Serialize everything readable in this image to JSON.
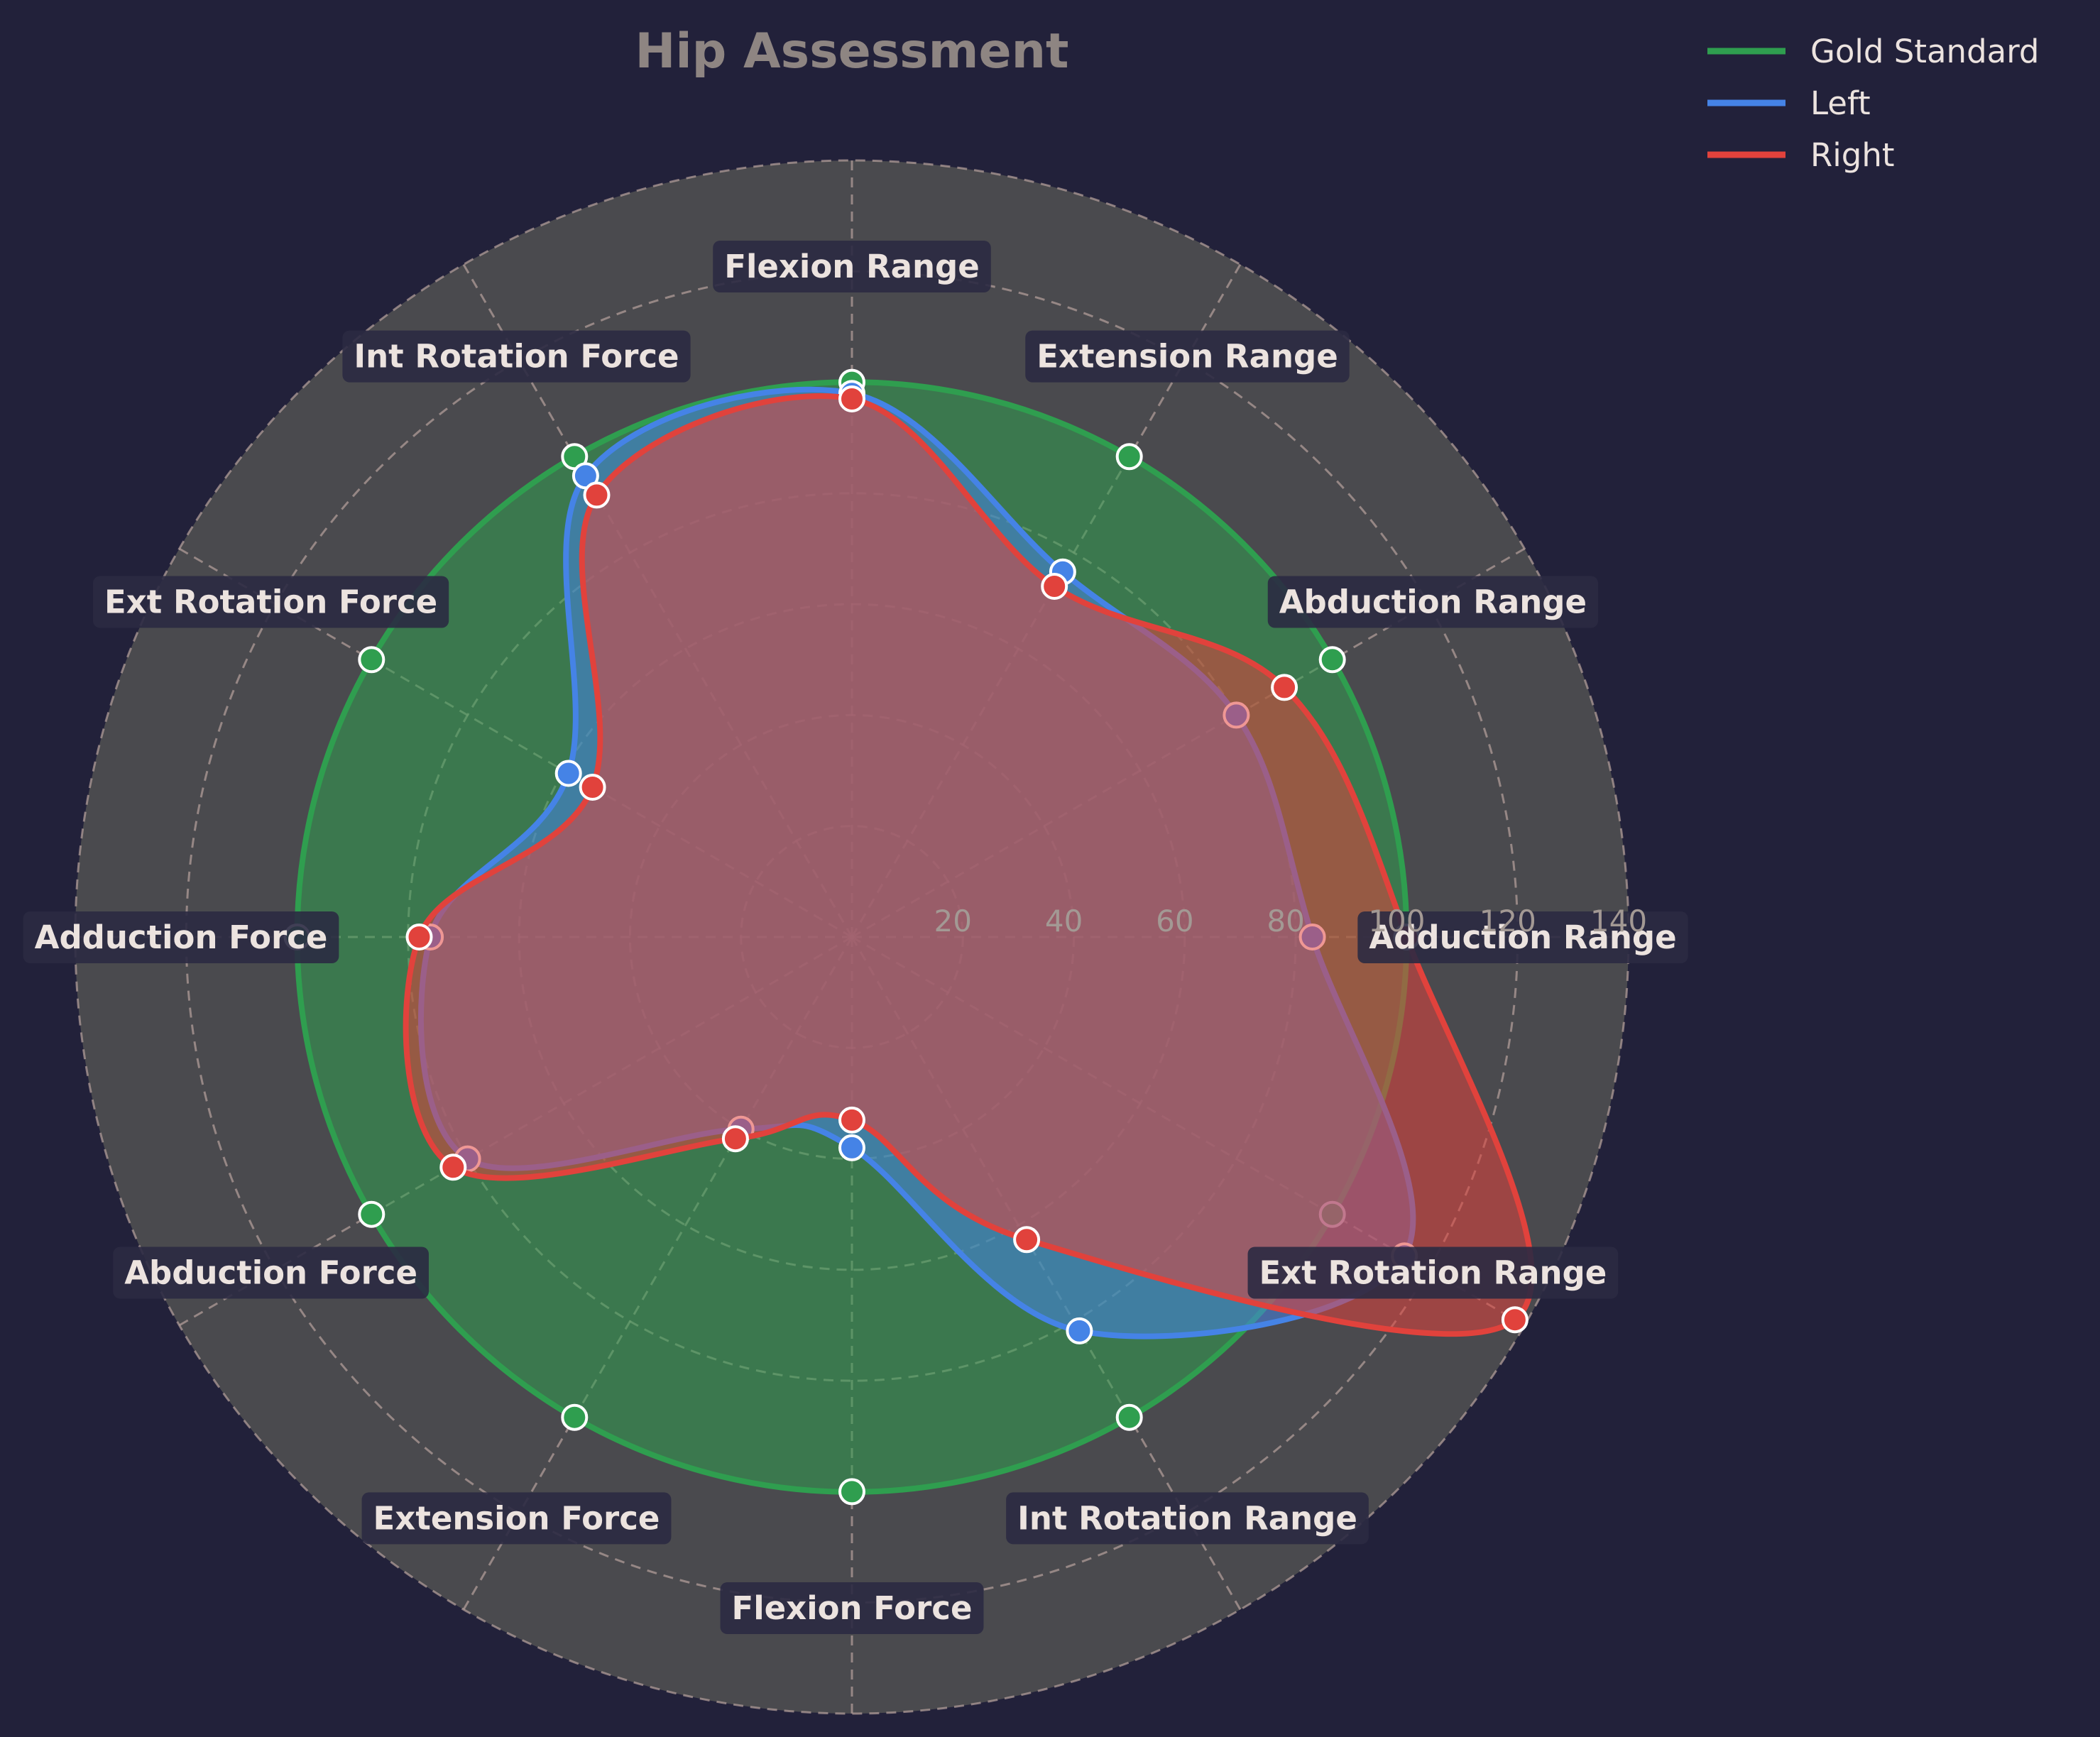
{
  "chart_data": {
    "type": "radar",
    "title": "Hip Assessment",
    "axes": [
      "Flexion Range",
      "Extension Range",
      "Abduction Range",
      "Adduction Range",
      "Ext Rotation Range",
      "Int Rotation Range",
      "Flexion Force",
      "Extension Force",
      "Abduction Force",
      "Adduction Force",
      "Ext Rotation Force",
      "Int Rotation Force"
    ],
    "rlim": [
      0,
      140
    ],
    "rticks": [
      20,
      40,
      60,
      80,
      100,
      120,
      140
    ],
    "grid": true,
    "legend_position": "top-right",
    "series": [
      {
        "name": "Gold Standard",
        "color": "#2f9e4f",
        "values": [
          100,
          100,
          100,
          100,
          100,
          100,
          100,
          100,
          100,
          100,
          100,
          100
        ]
      },
      {
        "name": "Left",
        "color": "#4583e6",
        "values": [
          98,
          76,
          80,
          83,
          115,
          82,
          38,
          40,
          80,
          76,
          59,
          96
        ]
      },
      {
        "name": "Right",
        "color": "#e1423c",
        "values": [
          97,
          73,
          90,
          100,
          138,
          63,
          33,
          42,
          83,
          78,
          54,
          92
        ]
      }
    ]
  }
}
